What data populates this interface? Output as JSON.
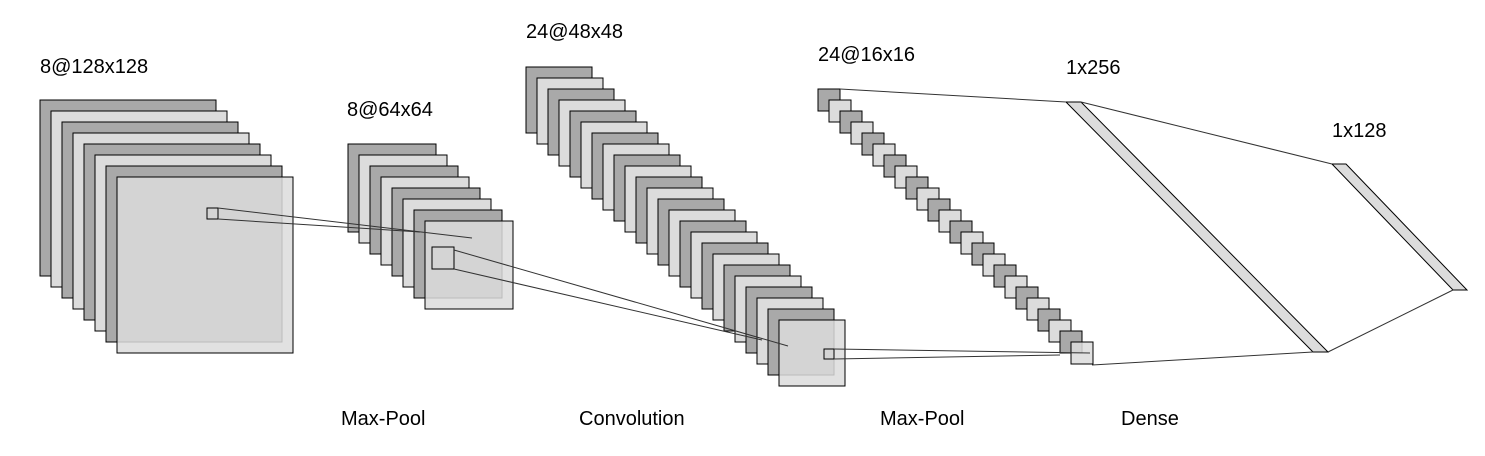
{
  "layers": [
    {
      "id": "input",
      "label": "8@128x128",
      "count": 8
    },
    {
      "id": "pool1",
      "label": "8@64x64",
      "count": 8
    },
    {
      "id": "conv",
      "label": "24@48x48",
      "count": 24
    },
    {
      "id": "pool2",
      "label": "24@16x16",
      "count": 24
    },
    {
      "id": "dense1",
      "label": "1x256"
    },
    {
      "id": "dense2",
      "label": "1x128"
    }
  ],
  "operations": [
    "Max-Pool",
    "Convolution",
    "Max-Pool",
    "Dense"
  ],
  "colors": {
    "dark": "#a9a9a9",
    "light": "#dcdcdc",
    "stroke": "#000000",
    "connector": "#333333",
    "background": "#ffffff"
  }
}
